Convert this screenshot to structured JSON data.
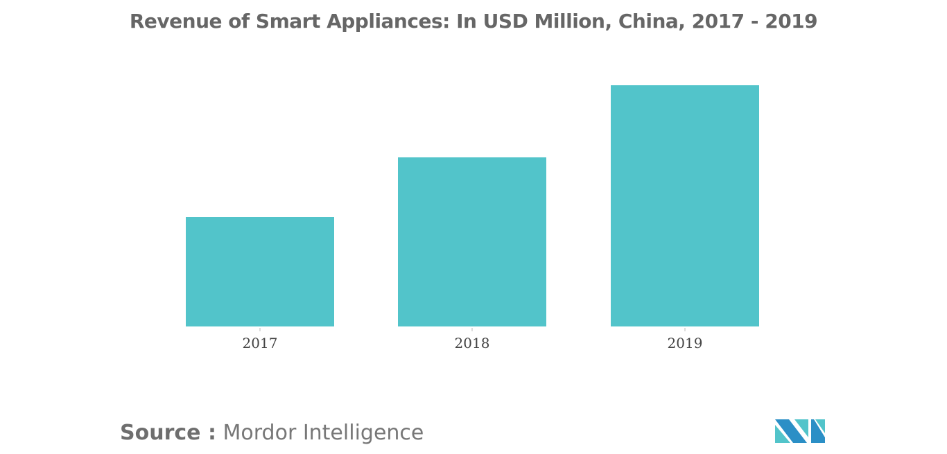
{
  "chart_data": {
    "type": "bar",
    "title": "Revenue of Smart Appliances: In USD Million, China, 2017 - 2019",
    "categories": [
      "2017",
      "2018",
      "2019"
    ],
    "values": [
      45.4,
      70.1,
      100
    ],
    "xlabel": "",
    "ylabel": "",
    "ylim": [
      0,
      100
    ],
    "grid": false,
    "y_axis_visible": false,
    "bar_color": "#52c4ca"
  },
  "source": {
    "label": "Source :",
    "value": "Mordor Intelligence"
  },
  "logo": {
    "text": "MI",
    "colors": [
      "#2b8fc6",
      "#52c4ca"
    ]
  }
}
